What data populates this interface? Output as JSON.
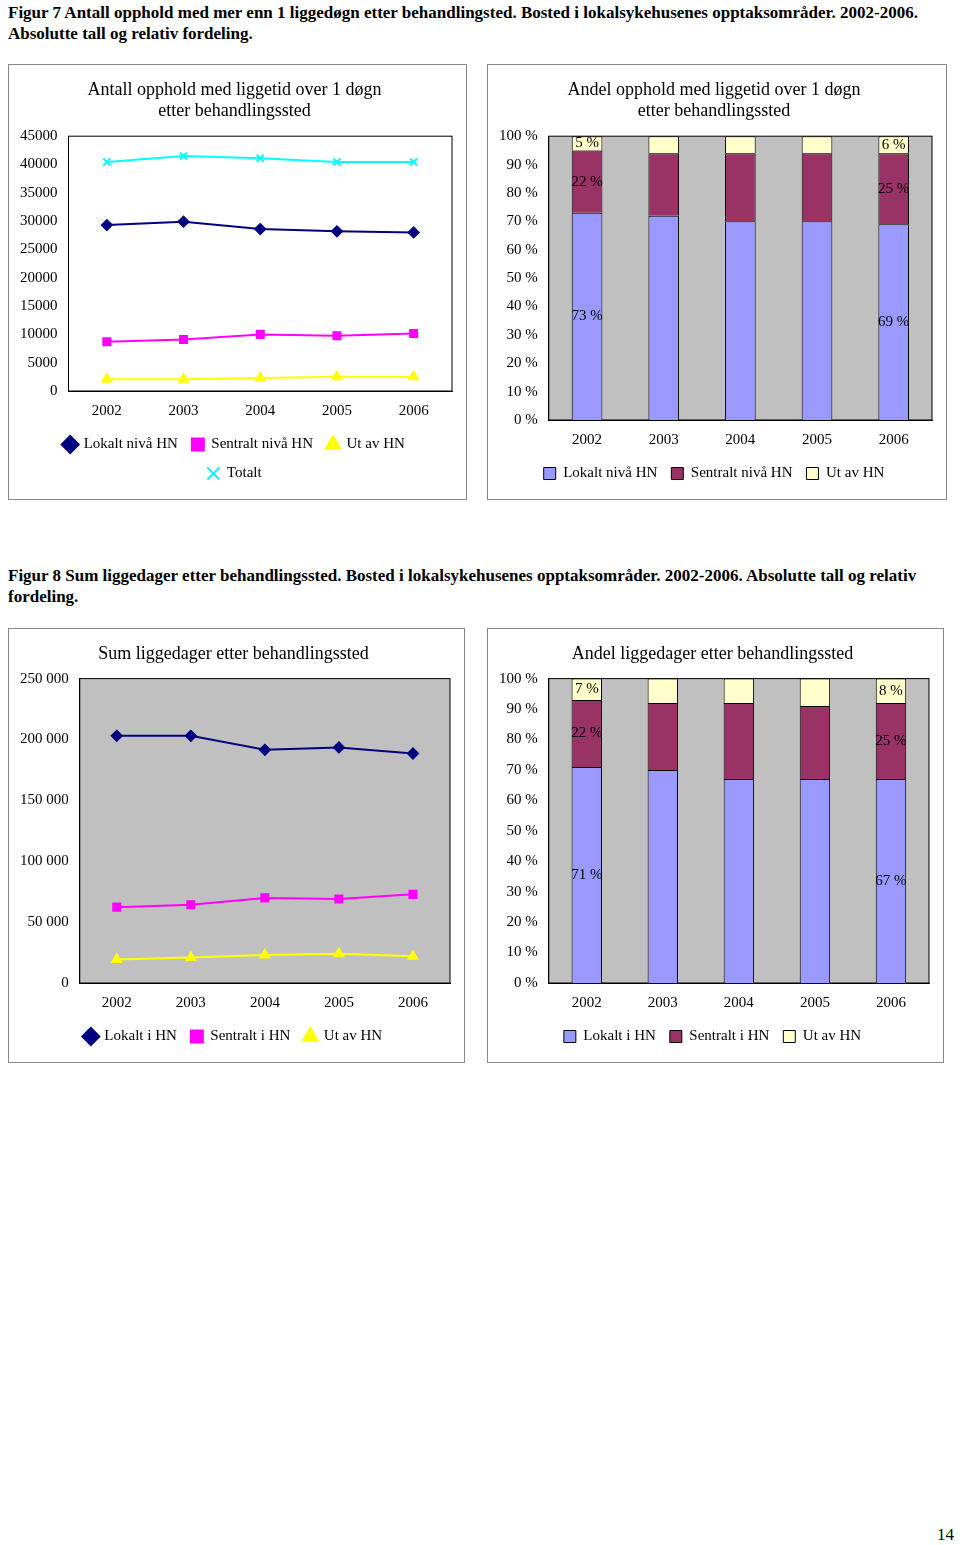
{
  "captions": [
    "Figur 7 Antall opphold med mer enn 1 liggedøgn etter behandlingsted. Bosted i lokalsykehusenes opptaksområder. 2002-2006. Absolutte tall og relativ fordeling.",
    "Figur 8 Sum liggedager etter behandlingssted. Bosted i lokalsykehusenes opptaksområder. 2002-2006. Absolutte tall og relativ fordeling."
  ],
  "page_number": "14",
  "chart_data": [
    {
      "type": "line",
      "title": [
        "Antall opphold med liggetid over 1 døgn",
        "etter behandlingssted"
      ],
      "categories": [
        "2002",
        "2003",
        "2004",
        "2005",
        "2006"
      ],
      "series": [
        {
          "name": "Lokalt nivå HN",
          "color": "#000080",
          "marker": "diamond",
          "values": [
            29300,
            29900,
            28600,
            28200,
            28000
          ]
        },
        {
          "name": "Sentralt nivå HN",
          "color": "#ff00ff",
          "marker": "square",
          "values": [
            8700,
            9100,
            10000,
            9750,
            10150
          ]
        },
        {
          "name": "Ut av HN",
          "color": "#ffff00",
          "marker": "triangle",
          "values": [
            2070,
            2070,
            2300,
            2500,
            2500
          ]
        },
        {
          "name": "Totalt",
          "color": "#00ffff",
          "marker": "x",
          "values": [
            40450,
            41500,
            41100,
            40450,
            40450
          ]
        }
      ],
      "ylim": [
        0,
        45000
      ],
      "yticks": [
        0,
        5000,
        10000,
        15000,
        20000,
        25000,
        30000,
        35000,
        40000,
        45000
      ],
      "grid": false,
      "legend": "bottom"
    },
    {
      "type": "bar",
      "title": [
        "Andel opphold med liggetid over 1 døgn",
        "etter behandlingssted"
      ],
      "categories": [
        "2002",
        "2003",
        "2004",
        "2005",
        "2006"
      ],
      "stacked": true,
      "data_labels": true,
      "series": [
        {
          "name": "Lokalt nivå HN",
          "color": "#9999ff",
          "values": [
            73,
            72,
            70,
            70,
            69
          ],
          "value_labels": [
            "73 %",
            null,
            null,
            null,
            "69 %"
          ]
        },
        {
          "name": "Sentralt nivå HN",
          "color": "#993366",
          "values": [
            22,
            22,
            24,
            24,
            25
          ],
          "value_labels": [
            "22 %",
            null,
            null,
            null,
            "25 %"
          ]
        },
        {
          "name": "Ut av HN",
          "color": "#ffffcc",
          "values": [
            5,
            6,
            6,
            6,
            6
          ],
          "value_labels": [
            "5 %",
            null,
            null,
            null,
            "6 %"
          ]
        }
      ],
      "ylim": [
        0,
        100
      ],
      "yticks": [
        {
          "value": 0,
          "label": "0 %"
        },
        {
          "value": 10,
          "label": "10 %"
        },
        {
          "value": 20,
          "label": "20 %"
        },
        {
          "value": 30,
          "label": "30 %"
        },
        {
          "value": 40,
          "label": "40 %"
        },
        {
          "value": 50,
          "label": "50 %"
        },
        {
          "value": 60,
          "label": "60 %"
        },
        {
          "value": 70,
          "label": "70 %"
        },
        {
          "value": 80,
          "label": "80 %"
        },
        {
          "value": 90,
          "label": "90 %"
        },
        {
          "value": 100,
          "label": "100 %"
        }
      ],
      "grid": false,
      "legend": "bottom"
    },
    {
      "type": "line",
      "title": "Sum liggedager etter behandlingssted",
      "categories": [
        "2002",
        "2003",
        "2004",
        "2005",
        "2006"
      ],
      "series": [
        {
          "name": "Lokalt i HN",
          "color": "#000080",
          "marker": "diamond",
          "values": [
            203000,
            203000,
            191500,
            193500,
            188500
          ]
        },
        {
          "name": "Sentralt i HN",
          "color": "#ff00ff",
          "marker": "square",
          "values": [
            62300,
            64200,
            69900,
            69000,
            72800
          ]
        },
        {
          "name": "Ut av HN",
          "color": "#ffff00",
          "marker": "triangle",
          "values": [
            19200,
            21000,
            23000,
            24000,
            22000
          ]
        }
      ],
      "ylim": [
        0,
        250000
      ],
      "yticks": [
        0,
        {
          "value": 50000,
          "label": "50 000"
        },
        {
          "value": 100000,
          "label": "100 000"
        },
        {
          "value": 150000,
          "label": "150 000"
        },
        {
          "value": 200000,
          "label": "200 000"
        },
        {
          "value": 250000,
          "label": "250 000"
        }
      ],
      "grid": false,
      "legend": "bottom"
    },
    {
      "type": "bar",
      "title": "Andel liggedager etter behandlingssted",
      "categories": [
        "2002",
        "2003",
        "2004",
        "2005",
        "2006"
      ],
      "stacked": true,
      "data_labels": true,
      "series": [
        {
          "name": "Lokalt i HN",
          "color": "#9999ff",
          "values": [
            71,
            70,
            67,
            67,
            67
          ],
          "value_labels": [
            "71 %",
            null,
            null,
            null,
            "67 %"
          ]
        },
        {
          "name": "Sentralt i HN",
          "color": "#993366",
          "values": [
            22,
            22,
            25,
            24,
            25
          ],
          "value_labels": [
            "22 %",
            null,
            null,
            null,
            "25 %"
          ]
        },
        {
          "name": "Ut av HN",
          "color": "#ffffcc",
          "values": [
            7,
            8,
            8,
            9,
            8
          ],
          "value_labels": [
            "7 %",
            null,
            null,
            null,
            "8 %"
          ]
        }
      ],
      "ylim": [
        0,
        100
      ],
      "yticks": [
        {
          "value": 0,
          "label": "0 %"
        },
        {
          "value": 10,
          "label": "10 %"
        },
        {
          "value": 20,
          "label": "20 %"
        },
        {
          "value": 30,
          "label": "30 %"
        },
        {
          "value": 40,
          "label": "40 %"
        },
        {
          "value": 50,
          "label": "50 %"
        },
        {
          "value": 60,
          "label": "60 %"
        },
        {
          "value": 70,
          "label": "70 %"
        },
        {
          "value": 80,
          "label": "80 %"
        },
        {
          "value": 90,
          "label": "90 %"
        },
        {
          "value": 100,
          "label": "100 %"
        }
      ],
      "grid": false,
      "legend": "bottom"
    }
  ]
}
